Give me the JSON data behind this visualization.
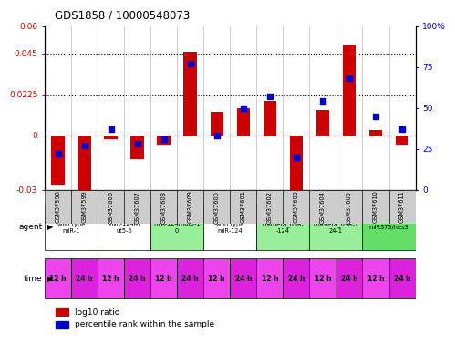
{
  "title": "GDS1858 / 10000548073",
  "samples": [
    "GSM37598",
    "GSM37599",
    "GSM37606",
    "GSM37607",
    "GSM37608",
    "GSM37609",
    "GSM37600",
    "GSM37601",
    "GSM37602",
    "GSM37603",
    "GSM37604",
    "GSM37605",
    "GSM37610",
    "GSM37611"
  ],
  "log10_ratio": [
    -0.027,
    -0.033,
    -0.002,
    -0.013,
    -0.005,
    0.046,
    0.013,
    0.015,
    0.019,
    -0.032,
    0.014,
    0.05,
    0.003,
    -0.005
  ],
  "percentile_rank": [
    22,
    27,
    37,
    28,
    31,
    77,
    33,
    50,
    57,
    20,
    54,
    68,
    45,
    37
  ],
  "bar_color": "#cc0000",
  "dot_color": "#0000cc",
  "ylim_left": [
    -0.03,
    0.06
  ],
  "ylim_right": [
    0,
    100
  ],
  "yticks_left": [
    -0.03,
    0,
    0.0225,
    0.045,
    0.06
  ],
  "yticks_right": [
    0,
    25,
    50,
    75,
    100
  ],
  "ytick_labels_left": [
    "-0.03",
    "0",
    "0.0225",
    "0.045",
    "0.06"
  ],
  "ytick_labels_right": [
    "0",
    "25",
    "50",
    "75",
    "100%"
  ],
  "hlines": [
    0.0225,
    0.045
  ],
  "agent_groups": [
    {
      "label": "wild type\nmiR-1",
      "start": 0,
      "end": 2,
      "color": "#ffffff"
    },
    {
      "label": "miR-124m\nut5-6",
      "start": 2,
      "end": 4,
      "color": "#ffffff"
    },
    {
      "label": "miR-124mut9-1\n0",
      "start": 4,
      "end": 6,
      "color": "#99ee99"
    },
    {
      "label": "wild type\nmiR-124",
      "start": 6,
      "end": 8,
      "color": "#ffffff"
    },
    {
      "label": "chimera_miR-\n-124",
      "start": 8,
      "end": 10,
      "color": "#99ee99"
    },
    {
      "label": "chimera_miR-1\n24-1",
      "start": 10,
      "end": 12,
      "color": "#99ee99"
    },
    {
      "label": "miR373/hes3",
      "start": 12,
      "end": 14,
      "color": "#66dd66"
    }
  ],
  "time_labels": [
    "12 h",
    "24 h",
    "12 h",
    "24 h",
    "12 h",
    "24 h",
    "12 h",
    "24 h",
    "12 h",
    "24 h",
    "12 h",
    "24 h",
    "12 h",
    "24 h"
  ],
  "time_color_even": "#ee44ee",
  "time_color_odd": "#dd22dd",
  "agent_label": "agent",
  "time_label": "time",
  "legend_bar": "log10 ratio",
  "legend_dot": "percentile rank within the sample",
  "zero_line_color": "#cc0000",
  "sample_bg": "#cccccc",
  "plot_bg": "#ffffff"
}
